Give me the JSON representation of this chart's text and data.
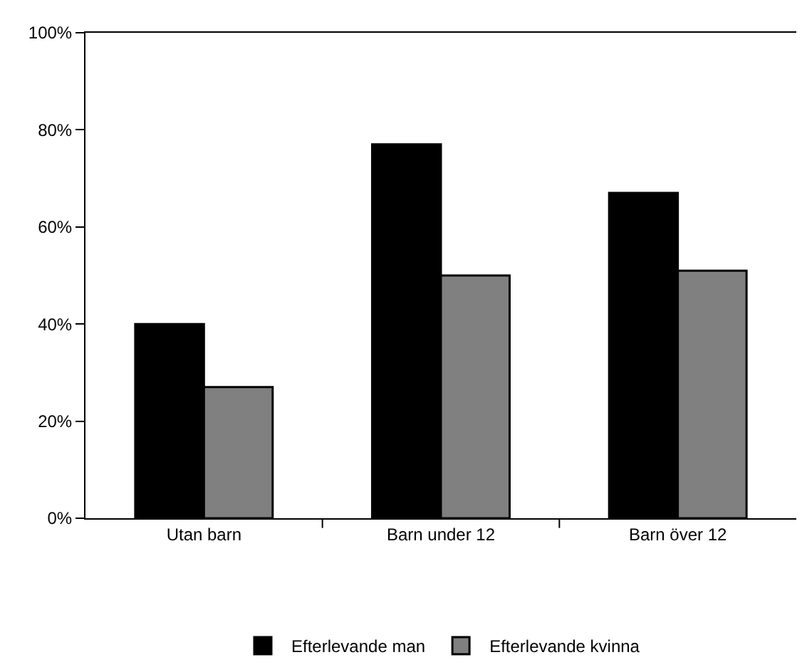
{
  "chart_data": {
    "type": "bar",
    "categories": [
      "Utan barn",
      "Barn under 12",
      "Barn över 12"
    ],
    "series": [
      {
        "name": "Efterlevande man",
        "color": "#000000",
        "values": [
          40,
          77,
          67
        ]
      },
      {
        "name": "Efterlevande kvinna",
        "color": "#808080",
        "values": [
          27,
          50,
          51
        ]
      }
    ],
    "ylim": [
      0,
      100
    ],
    "yticks": [
      {
        "value": 0,
        "label": "0%"
      },
      {
        "value": 20,
        "label": "20%"
      },
      {
        "value": 40,
        "label": "40%"
      },
      {
        "value": 60,
        "label": "60%"
      },
      {
        "value": 80,
        "label": "80%"
      },
      {
        "value": 100,
        "label": "100%"
      }
    ],
    "grid": false,
    "legend": "bottom"
  }
}
